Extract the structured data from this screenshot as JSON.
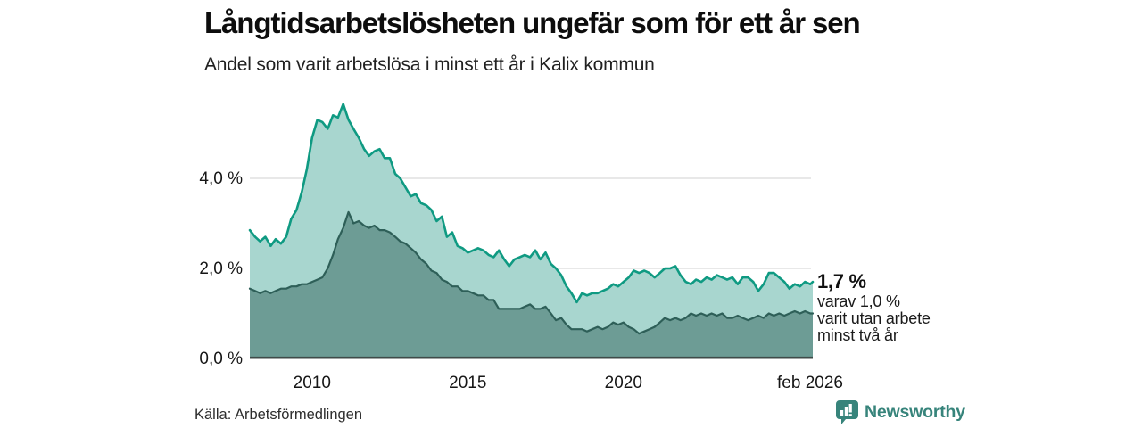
{
  "header": {
    "title": "Långtidsarbetslösheten ungefär som för ett år sen",
    "subtitle": "Andel som varit arbetslösa i minst ett år i Kalix kommun"
  },
  "chart_data": {
    "type": "area",
    "title": "Långtidsarbetslösheten ungefär som för ett år sen",
    "subtitle": "Andel som varit arbetslösa i minst ett år i Kalix kommun",
    "unit": "%",
    "grid": "horizontal",
    "ylim": [
      0,
      5.8
    ],
    "xlim_years": [
      2008.0,
      2026.08
    ],
    "yticks": [
      {
        "value": 0,
        "label": "0,0 %"
      },
      {
        "value": 2,
        "label": "2,0 %"
      },
      {
        "value": 4,
        "label": "4,0 %"
      }
    ],
    "xticks": [
      {
        "year": 2010.0,
        "label": "2010"
      },
      {
        "year": 2015.0,
        "label": "2015"
      },
      {
        "year": 2020.0,
        "label": "2020"
      },
      {
        "year": 2026.0,
        "label": "feb 2026"
      }
    ],
    "x_years": [
      2008.0,
      2008.17,
      2008.33,
      2008.5,
      2008.67,
      2008.83,
      2009.0,
      2009.17,
      2009.33,
      2009.5,
      2009.67,
      2009.83,
      2010.0,
      2010.17,
      2010.33,
      2010.5,
      2010.67,
      2010.83,
      2011.0,
      2011.17,
      2011.33,
      2011.5,
      2011.67,
      2011.83,
      2012.0,
      2012.17,
      2012.33,
      2012.5,
      2012.67,
      2012.83,
      2013.0,
      2013.17,
      2013.33,
      2013.5,
      2013.67,
      2013.83,
      2014.0,
      2014.17,
      2014.33,
      2014.5,
      2014.67,
      2014.83,
      2015.0,
      2015.17,
      2015.33,
      2015.5,
      2015.67,
      2015.83,
      2016.0,
      2016.17,
      2016.33,
      2016.5,
      2016.67,
      2016.83,
      2017.0,
      2017.17,
      2017.33,
      2017.5,
      2017.67,
      2017.83,
      2018.0,
      2018.17,
      2018.33,
      2018.5,
      2018.67,
      2018.83,
      2019.0,
      2019.17,
      2019.33,
      2019.5,
      2019.67,
      2019.83,
      2020.0,
      2020.17,
      2020.33,
      2020.5,
      2020.67,
      2020.83,
      2021.0,
      2021.17,
      2021.33,
      2021.5,
      2021.67,
      2021.83,
      2022.0,
      2022.17,
      2022.33,
      2022.5,
      2022.67,
      2022.83,
      2023.0,
      2023.17,
      2023.33,
      2023.5,
      2023.67,
      2023.83,
      2024.0,
      2024.17,
      2024.33,
      2024.5,
      2024.67,
      2024.83,
      2025.0,
      2025.17,
      2025.33,
      2025.5,
      2025.67,
      2025.83,
      2026.0,
      2026.08
    ],
    "series": [
      {
        "name": "Andel som varit arbetslösa minst ett år",
        "line_color": "#0f9a82",
        "fill_color": "#a8d6cf",
        "line_width": 2.6,
        "latest_value": "1,7 %",
        "values": [
          2.85,
          2.7,
          2.6,
          2.7,
          2.5,
          2.65,
          2.55,
          2.7,
          3.1,
          3.3,
          3.7,
          4.2,
          4.9,
          5.3,
          5.25,
          5.1,
          5.4,
          5.35,
          5.65,
          5.3,
          5.1,
          4.9,
          4.65,
          4.5,
          4.6,
          4.65,
          4.45,
          4.45,
          4.1,
          4.0,
          3.8,
          3.6,
          3.65,
          3.45,
          3.4,
          3.3,
          3.05,
          3.15,
          2.7,
          2.8,
          2.5,
          2.45,
          2.35,
          2.4,
          2.45,
          2.4,
          2.3,
          2.25,
          2.4,
          2.2,
          2.05,
          2.2,
          2.25,
          2.3,
          2.25,
          2.4,
          2.2,
          2.35,
          2.1,
          2.0,
          1.85,
          1.6,
          1.45,
          1.25,
          1.45,
          1.4,
          1.45,
          1.45,
          1.5,
          1.55,
          1.65,
          1.6,
          1.7,
          1.8,
          1.95,
          1.9,
          1.95,
          1.9,
          1.8,
          1.9,
          2.0,
          2.0,
          2.05,
          1.85,
          1.7,
          1.65,
          1.75,
          1.7,
          1.8,
          1.75,
          1.85,
          1.8,
          1.75,
          1.8,
          1.65,
          1.8,
          1.8,
          1.7,
          1.5,
          1.65,
          1.9,
          1.9,
          1.8,
          1.7,
          1.55,
          1.65,
          1.6,
          1.7,
          1.65,
          1.7
        ]
      },
      {
        "name": "Andel som varit arbetslösa minst två år",
        "line_color": "#2e5f58",
        "fill_color": "#6d9c95",
        "line_width": 2.2,
        "latest_value": "1,0 %",
        "values": [
          1.55,
          1.5,
          1.45,
          1.5,
          1.45,
          1.5,
          1.55,
          1.55,
          1.6,
          1.6,
          1.65,
          1.65,
          1.7,
          1.75,
          1.8,
          2.0,
          2.3,
          2.65,
          2.9,
          3.25,
          3.0,
          3.05,
          2.95,
          2.9,
          2.95,
          2.85,
          2.85,
          2.8,
          2.7,
          2.6,
          2.55,
          2.45,
          2.35,
          2.2,
          2.1,
          1.95,
          1.9,
          1.75,
          1.7,
          1.6,
          1.6,
          1.5,
          1.5,
          1.45,
          1.4,
          1.4,
          1.3,
          1.3,
          1.1,
          1.1,
          1.1,
          1.1,
          1.1,
          1.15,
          1.2,
          1.1,
          1.1,
          1.15,
          1.0,
          0.85,
          0.9,
          0.75,
          0.65,
          0.65,
          0.65,
          0.6,
          0.65,
          0.7,
          0.65,
          0.7,
          0.8,
          0.75,
          0.8,
          0.7,
          0.65,
          0.55,
          0.6,
          0.65,
          0.7,
          0.8,
          0.9,
          0.85,
          0.9,
          0.85,
          0.9,
          1.0,
          0.95,
          1.0,
          0.95,
          1.0,
          0.95,
          1.0,
          0.9,
          0.9,
          0.95,
          0.9,
          0.85,
          0.9,
          0.95,
          0.9,
          1.0,
          0.95,
          1.0,
          0.95,
          1.0,
          1.05,
          1.0,
          1.05,
          1.0,
          1.0
        ]
      }
    ],
    "annotation": {
      "headline": "1,7 %",
      "lines": [
        "varav 1,0 %",
        "varit utan arbete",
        "minst två år"
      ]
    },
    "colors": {
      "grid": "#d9d9d9",
      "axis": "#3f4b49"
    }
  },
  "source": {
    "label": "Källa: Arbetsförmedlingen"
  },
  "branding": {
    "name": "Newsworthy",
    "logo_icon": "bar-chart-speech-bubble-icon",
    "color": "#37847b"
  }
}
